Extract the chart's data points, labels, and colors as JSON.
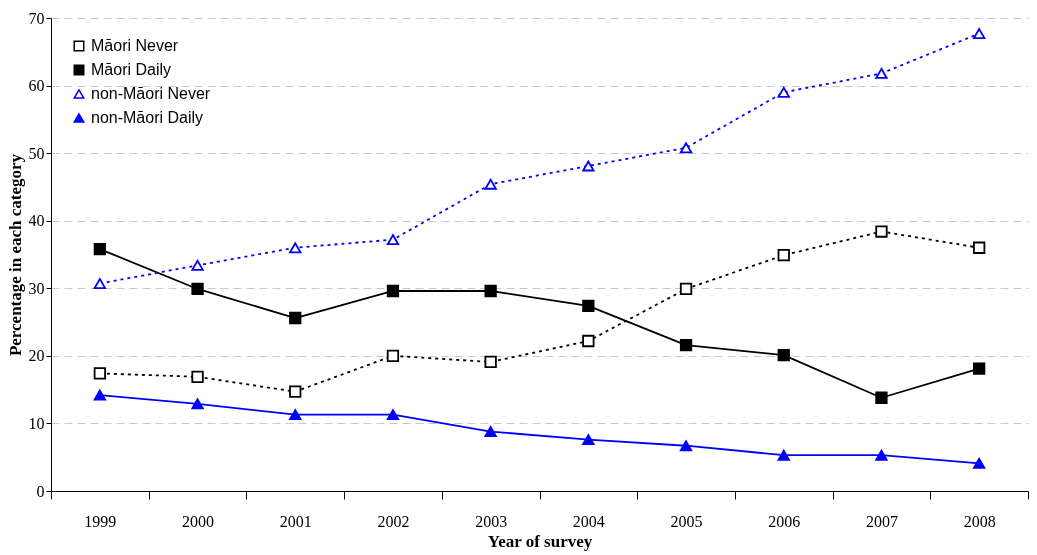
{
  "chart_data": {
    "type": "line",
    "xlabel": "Year of survey",
    "ylabel": "Percentage in each category",
    "categories": [
      "1999",
      "2000",
      "2001",
      "2002",
      "2003",
      "2004",
      "2005",
      "2006",
      "2007",
      "2008"
    ],
    "ylim": [
      0,
      70
    ],
    "yticks": [
      0,
      10,
      20,
      30,
      40,
      50,
      60,
      70
    ],
    "grid": "y",
    "legend": "top left",
    "series": [
      {
        "name": "Māori Never",
        "color": "#000000",
        "marker": "square",
        "line_style": "dotted",
        "values": [
          17.4,
          16.9,
          14.7,
          20.0,
          19.1,
          22.2,
          29.9,
          34.9,
          38.4,
          36.0
        ]
      },
      {
        "name": "Māori Daily",
        "color": "#000000",
        "marker": "square",
        "line_style": "solid",
        "values": [
          35.8,
          29.9,
          25.6,
          29.6,
          29.6,
          27.4,
          21.6,
          20.1,
          13.8,
          18.1
        ]
      },
      {
        "name": "non-Māori Never",
        "color": "#0000ff",
        "marker": "triangle",
        "line_style": "dotted",
        "values": [
          30.7,
          33.4,
          36.0,
          37.2,
          45.4,
          48.1,
          50.8,
          59.0,
          61.8,
          67.7
        ]
      },
      {
        "name": "non-Māori Daily",
        "color": "#0000ff",
        "marker": "triangle",
        "line_style": "solid",
        "values": [
          14.2,
          12.9,
          11.3,
          11.3,
          8.8,
          7.6,
          6.7,
          5.3,
          5.3,
          4.1
        ]
      }
    ]
  }
}
